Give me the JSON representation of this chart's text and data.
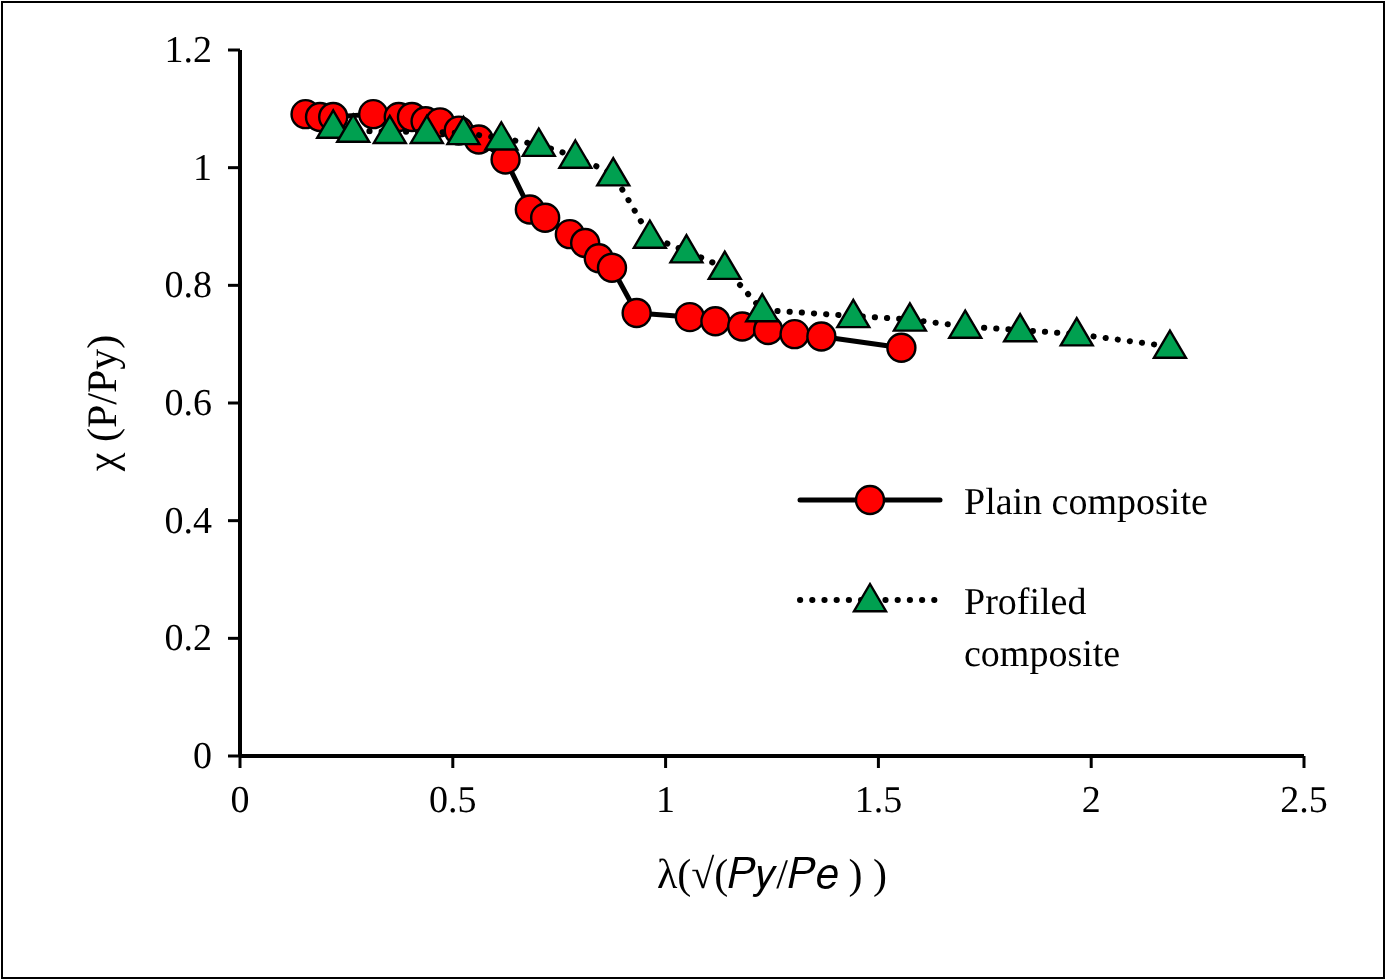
{
  "chart_data": {
    "type": "line",
    "xlabel": "λ(√(𝑃𝑦/𝑃𝑒 ) )",
    "ylabel": "χ (P/Py)",
    "xlim": [
      0,
      2.5
    ],
    "xticks": [
      0,
      0.5,
      1,
      1.5,
      2,
      2.5
    ],
    "ylim": [
      0,
      1.2
    ],
    "yticks": [
      0,
      0.2,
      0.4,
      0.6,
      0.8,
      1,
      1.2
    ],
    "grid": false,
    "legend": "right",
    "series": [
      {
        "name": "Plain composite",
        "color": "#ff0000",
        "marker": "circle",
        "line_style": "solid",
        "x": [
          0.154,
          0.188,
          0.219,
          0.313,
          0.373,
          0.404,
          0.436,
          0.47,
          0.514,
          0.561,
          0.624,
          0.681,
          0.717,
          0.775,
          0.811,
          0.843,
          0.874,
          0.932,
          1.057,
          1.117,
          1.18,
          1.241,
          1.303,
          1.366,
          1.554
        ],
        "values": [
          1.091,
          1.086,
          1.086,
          1.091,
          1.086,
          1.086,
          1.079,
          1.077,
          1.063,
          1.048,
          1.014,
          0.929,
          0.915,
          0.887,
          0.872,
          0.846,
          0.83,
          0.753,
          0.746,
          0.739,
          0.73,
          0.724,
          0.717,
          0.713,
          0.694
        ]
      },
      {
        "name": "Profiled composite",
        "color": "#00a050",
        "marker": "triangle",
        "line_style": "dotted",
        "x": [
          0.219,
          0.266,
          0.352,
          0.439,
          0.525,
          0.614,
          0.702,
          0.788,
          0.877,
          0.963,
          1.049,
          1.139,
          1.227,
          1.441,
          1.574,
          1.704,
          1.833,
          1.966,
          2.185
        ],
        "values": [
          1.07,
          1.063,
          1.061,
          1.061,
          1.059,
          1.05,
          1.039,
          1.019,
          0.989,
          0.883,
          0.858,
          0.83,
          0.758,
          0.748,
          0.742,
          0.73,
          0.724,
          0.717,
          0.696
        ]
      }
    ]
  }
}
